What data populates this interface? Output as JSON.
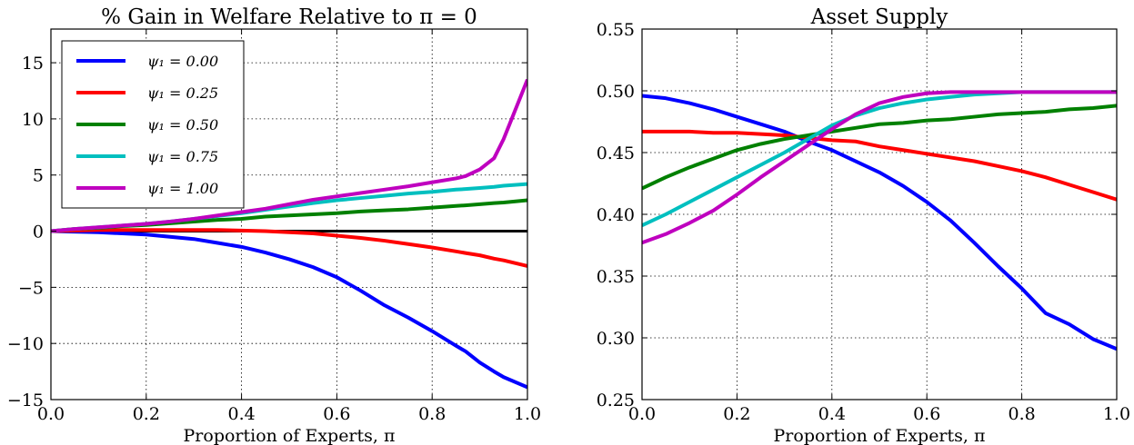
{
  "chart_data": [
    {
      "type": "line",
      "title": "% Gain in Welfare Relative to π = 0",
      "xlabel": "Proportion of Experts, π",
      "ylabel": "",
      "xlim": [
        0.0,
        1.0
      ],
      "ylim": [
        -15,
        18
      ],
      "xticks": [
        "0.0",
        "0.2",
        "0.4",
        "0.6",
        "0.8",
        "1.0"
      ],
      "xtick_values": [
        0.0,
        0.2,
        0.4,
        0.6,
        0.8,
        1.0
      ],
      "yticks": [
        "−15",
        "−10",
        "−5",
        "0",
        "5",
        "10",
        "15"
      ],
      "ytick_values": [
        -15,
        -10,
        -5,
        0,
        5,
        10,
        15
      ],
      "grid": true,
      "legend_position": "top-left",
      "horizontal_line": {
        "y": 0,
        "color": "#000000"
      },
      "x": [
        0.0,
        0.05,
        0.1,
        0.15,
        0.2,
        0.25,
        0.3,
        0.35,
        0.4,
        0.45,
        0.5,
        0.55,
        0.6,
        0.65,
        0.7,
        0.75,
        0.8,
        0.85,
        0.87,
        0.9,
        0.93,
        0.95,
        1.0
      ],
      "series": [
        {
          "name": "ψ₁ = 0.00",
          "color": "#0000ff",
          "values": [
            0.0,
            -0.05,
            -0.1,
            -0.2,
            -0.3,
            -0.5,
            -0.7,
            -1.05,
            -1.4,
            -1.9,
            -2.5,
            -3.2,
            -4.1,
            -5.3,
            -6.6,
            -7.7,
            -8.9,
            -10.2,
            -10.7,
            -11.7,
            -12.5,
            -13.0,
            -13.9
          ]
        },
        {
          "name": "ψ₁ = 0.25",
          "color": "#ff0000",
          "values": [
            0.0,
            0.05,
            0.1,
            0.1,
            0.1,
            0.1,
            0.1,
            0.1,
            0.05,
            0.0,
            -0.1,
            -0.2,
            -0.4,
            -0.6,
            -0.85,
            -1.15,
            -1.45,
            -1.8,
            -1.95,
            -2.15,
            -2.45,
            -2.6,
            -3.1
          ]
        },
        {
          "name": "ψ₁ = 0.50",
          "color": "#008000",
          "values": [
            0.0,
            0.2,
            0.3,
            0.45,
            0.55,
            0.7,
            0.85,
            1.0,
            1.1,
            1.3,
            1.4,
            1.5,
            1.6,
            1.75,
            1.85,
            1.95,
            2.1,
            2.25,
            2.3,
            2.4,
            2.5,
            2.55,
            2.75
          ]
        },
        {
          "name": "ψ₁ = 0.75",
          "color": "#00bfbf",
          "values": [
            0.0,
            0.2,
            0.35,
            0.5,
            0.65,
            0.85,
            1.1,
            1.35,
            1.6,
            1.9,
            2.2,
            2.5,
            2.75,
            2.95,
            3.15,
            3.35,
            3.5,
            3.7,
            3.75,
            3.85,
            3.95,
            4.05,
            4.2
          ]
        },
        {
          "name": "ψ₁ = 1.00",
          "color": "#bf00bf",
          "values": [
            0.0,
            0.2,
            0.35,
            0.5,
            0.65,
            0.85,
            1.1,
            1.4,
            1.7,
            2.0,
            2.4,
            2.8,
            3.1,
            3.4,
            3.7,
            4.0,
            4.35,
            4.7,
            4.9,
            5.5,
            6.5,
            8.2,
            13.5
          ]
        }
      ]
    },
    {
      "type": "line",
      "title": "Asset Supply",
      "xlabel": "Proportion of Experts, π",
      "ylabel": "",
      "xlim": [
        0.0,
        1.0
      ],
      "ylim": [
        0.25,
        0.55
      ],
      "xticks": [
        "0.0",
        "0.2",
        "0.4",
        "0.6",
        "0.8",
        "1.0"
      ],
      "xtick_values": [
        0.0,
        0.2,
        0.4,
        0.6,
        0.8,
        1.0
      ],
      "yticks": [
        "0.25",
        "0.30",
        "0.35",
        "0.40",
        "0.45",
        "0.50",
        "0.55"
      ],
      "ytick_values": [
        0.25,
        0.3,
        0.35,
        0.4,
        0.45,
        0.5,
        0.55
      ],
      "grid": true,
      "x": [
        0.0,
        0.05,
        0.1,
        0.15,
        0.2,
        0.25,
        0.3,
        0.35,
        0.4,
        0.45,
        0.5,
        0.55,
        0.6,
        0.65,
        0.7,
        0.75,
        0.8,
        0.85,
        0.9,
        0.95,
        1.0
      ],
      "series": [
        {
          "name": "ψ₁ = 0.00",
          "color": "#0000ff",
          "values": [
            0.496,
            0.494,
            0.49,
            0.485,
            0.479,
            0.473,
            0.467,
            0.459,
            0.452,
            0.443,
            0.434,
            0.423,
            0.41,
            0.395,
            0.377,
            0.358,
            0.34,
            0.32,
            0.311,
            0.299,
            0.291
          ]
        },
        {
          "name": "ψ₁ = 0.25",
          "color": "#ff0000",
          "values": [
            0.467,
            0.467,
            0.467,
            0.466,
            0.466,
            0.465,
            0.464,
            0.462,
            0.46,
            0.459,
            0.455,
            0.452,
            0.449,
            0.446,
            0.443,
            0.439,
            0.435,
            0.43,
            0.424,
            0.418,
            0.412
          ]
        },
        {
          "name": "ψ₁ = 0.50",
          "color": "#008000",
          "values": [
            0.421,
            0.43,
            0.438,
            0.445,
            0.452,
            0.457,
            0.461,
            0.464,
            0.467,
            0.47,
            0.473,
            0.474,
            0.476,
            0.477,
            0.479,
            0.481,
            0.482,
            0.483,
            0.485,
            0.486,
            0.488
          ]
        },
        {
          "name": "ψ₁ = 0.75",
          "color": "#00bfbf",
          "values": [
            0.391,
            0.4,
            0.41,
            0.42,
            0.43,
            0.44,
            0.45,
            0.461,
            0.472,
            0.48,
            0.486,
            0.49,
            0.493,
            0.495,
            0.497,
            0.498,
            0.499,
            0.499,
            0.499,
            0.499,
            0.499
          ]
        },
        {
          "name": "ψ₁ = 1.00",
          "color": "#bf00bf",
          "values": [
            0.377,
            0.384,
            0.393,
            0.403,
            0.416,
            0.43,
            0.443,
            0.456,
            0.469,
            0.481,
            0.49,
            0.495,
            0.498,
            0.499,
            0.499,
            0.499,
            0.499,
            0.499,
            0.499,
            0.499,
            0.499
          ]
        }
      ]
    }
  ]
}
